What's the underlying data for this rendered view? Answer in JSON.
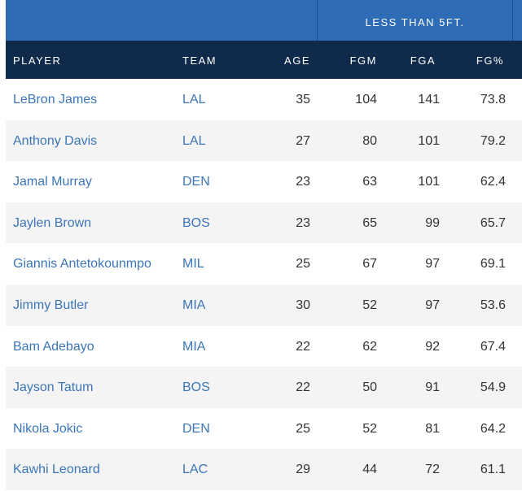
{
  "group_header": "LESS THAN 5FT.",
  "columns": {
    "player": "PLAYER",
    "team": "TEAM",
    "age": "AGE",
    "fgm": "FGM",
    "fga": "FGA",
    "fgpct": "FG%"
  },
  "rows": [
    {
      "player": "LeBron James",
      "team": "LAL",
      "age": "35",
      "fgm": "104",
      "fga": "141",
      "fgpct": "73.8"
    },
    {
      "player": "Anthony Davis",
      "team": "LAL",
      "age": "27",
      "fgm": "80",
      "fga": "101",
      "fgpct": "79.2"
    },
    {
      "player": "Jamal Murray",
      "team": "DEN",
      "age": "23",
      "fgm": "63",
      "fga": "101",
      "fgpct": "62.4"
    },
    {
      "player": "Jaylen Brown",
      "team": "BOS",
      "age": "23",
      "fgm": "65",
      "fga": "99",
      "fgpct": "65.7"
    },
    {
      "player": "Giannis Antetokounmpo",
      "team": "MIL",
      "age": "25",
      "fgm": "67",
      "fga": "97",
      "fgpct": "69.1"
    },
    {
      "player": "Jimmy Butler",
      "team": "MIA",
      "age": "30",
      "fgm": "52",
      "fga": "97",
      "fgpct": "53.6"
    },
    {
      "player": "Bam Adebayo",
      "team": "MIA",
      "age": "22",
      "fgm": "62",
      "fga": "92",
      "fgpct": "67.4"
    },
    {
      "player": "Jayson Tatum",
      "team": "BOS",
      "age": "22",
      "fgm": "50",
      "fga": "91",
      "fgpct": "54.9"
    },
    {
      "player": "Nikola Jokic",
      "team": "DEN",
      "age": "25",
      "fgm": "52",
      "fga": "81",
      "fgpct": "64.2"
    },
    {
      "player": "Kawhi Leonard",
      "team": "LAC",
      "age": "29",
      "fgm": "44",
      "fga": "72",
      "fgpct": "61.1"
    }
  ],
  "colors": {
    "group_header_bg": "#2e6db5",
    "column_header_bg": "#0f2a4a",
    "link": "#3b76b8",
    "alt_row_bg": "#f4f4f4"
  }
}
